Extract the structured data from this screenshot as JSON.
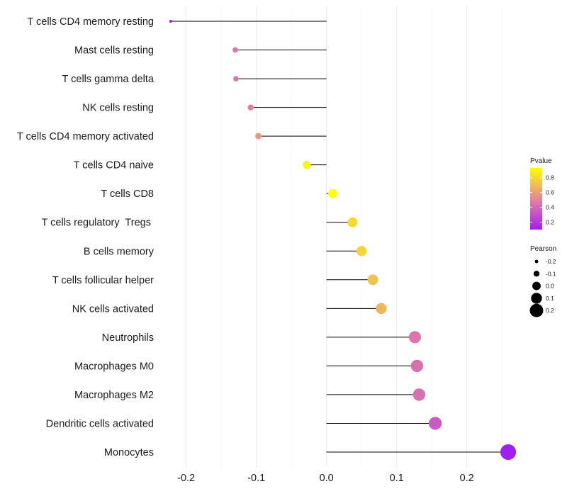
{
  "chart_data": {
    "type": "lollipop",
    "title": "",
    "xlabel": "",
    "ylabel": "",
    "xlim": [
      -0.235,
      0.27
    ],
    "xticks": [
      -0.2,
      -0.1,
      0.0,
      0.1,
      0.2
    ],
    "xtick_labels": [
      "-0.2",
      "-0.1",
      "0.0",
      "0.1",
      "0.2"
    ],
    "categories": [
      "T cells CD4 memory resting",
      "Mast cells resting",
      "T cells gamma delta",
      "NK cells resting",
      "T cells CD4 memory activated",
      "T cells CD4 naive",
      "T cells CD8",
      "T cells regulatory  Tregs ",
      "B cells memory",
      "T cells follicular helper",
      "NK cells activated",
      "Neutrophils",
      "Macrophages M0",
      "Macrophages M2",
      "Dendritic cells activated",
      "Monocytes"
    ],
    "pearson": [
      -0.222,
      -0.13,
      -0.129,
      -0.108,
      -0.097,
      -0.028,
      0.009,
      0.037,
      0.05,
      0.066,
      0.078,
      0.126,
      0.129,
      0.132,
      0.155,
      0.259
    ],
    "pvalue": [
      0.05,
      0.45,
      0.45,
      0.5,
      0.58,
      0.9,
      0.97,
      0.8,
      0.78,
      0.72,
      0.68,
      0.45,
      0.43,
      0.43,
      0.34,
      0.05
    ],
    "legend_pvalue": {
      "title": "Pvalue",
      "ticks": [
        "0.2",
        "0.4",
        "0.6",
        "0.8"
      ],
      "tick_values": [
        0.2,
        0.4,
        0.6,
        0.8
      ],
      "range": [
        0.1,
        0.93
      ],
      "color_low": "#a020f0",
      "color_mid": "#e07ba6",
      "color_high": "#ffff00",
      "position": "right"
    },
    "legend_pearson": {
      "title": "Pearson",
      "ticks": [
        "-0.2",
        "-0.1",
        "0.0",
        "0.1",
        "0.2"
      ],
      "tick_values": [
        -0.2,
        -0.1,
        0.0,
        0.1,
        0.2
      ],
      "position": "right"
    }
  }
}
